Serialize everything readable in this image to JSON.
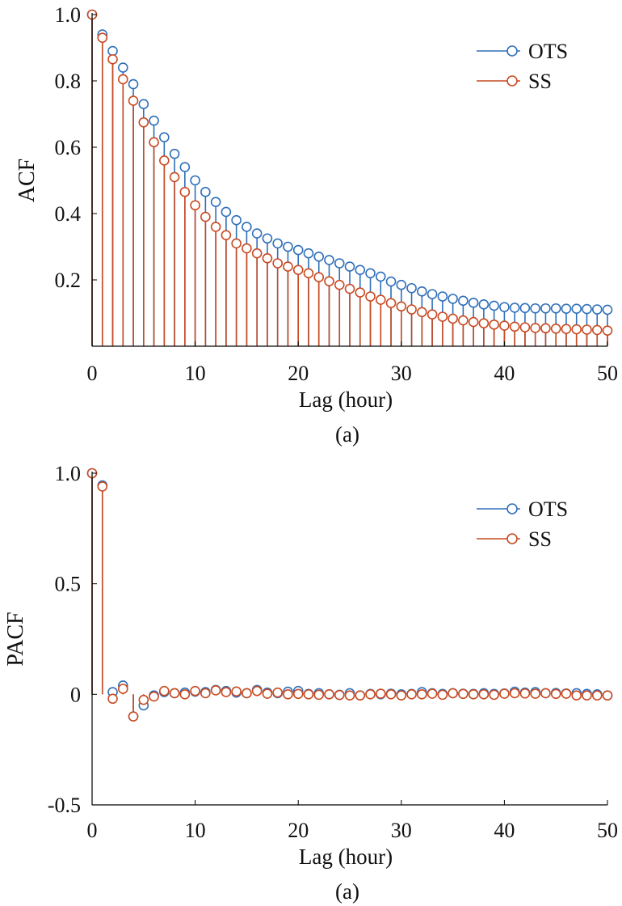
{
  "colors": {
    "ots": "#2f6fba",
    "ss": "#c94a22",
    "axis": "#000000"
  },
  "chart_data": [
    {
      "type": "stem",
      "ylabel": "ACF",
      "xlabel": "Lag (hour)",
      "caption": "(a)",
      "xlim": [
        0,
        50
      ],
      "ylim": [
        0,
        1.0
      ],
      "xticks": [
        0,
        10,
        20,
        30,
        40,
        50
      ],
      "xtick_labels": [
        "0",
        "10",
        "20",
        "30",
        "40",
        "50"
      ],
      "yticks": [
        0.2,
        0.4,
        0.6,
        0.8,
        1.0
      ],
      "ytick_labels": [
        "0.2",
        "0.4",
        "0.6",
        "0.8",
        "1.0"
      ],
      "legend_position": "top-right",
      "x": [
        0,
        1,
        2,
        3,
        4,
        5,
        6,
        7,
        8,
        9,
        10,
        11,
        12,
        13,
        14,
        15,
        16,
        17,
        18,
        19,
        20,
        21,
        22,
        23,
        24,
        25,
        26,
        27,
        28,
        29,
        30,
        31,
        32,
        33,
        34,
        35,
        36,
        37,
        38,
        39,
        40,
        41,
        42,
        43,
        44,
        45,
        46,
        47,
        48,
        49,
        50
      ],
      "series": [
        {
          "name": "OTS",
          "color_key": "ots",
          "values": [
            1.0,
            0.94,
            0.89,
            0.84,
            0.79,
            0.73,
            0.68,
            0.63,
            0.58,
            0.54,
            0.5,
            0.465,
            0.435,
            0.405,
            0.38,
            0.36,
            0.34,
            0.325,
            0.31,
            0.3,
            0.29,
            0.28,
            0.27,
            0.26,
            0.25,
            0.24,
            0.23,
            0.22,
            0.21,
            0.195,
            0.185,
            0.175,
            0.165,
            0.157,
            0.15,
            0.143,
            0.137,
            0.131,
            0.126,
            0.122,
            0.118,
            0.116,
            0.115,
            0.114,
            0.114,
            0.114,
            0.113,
            0.113,
            0.112,
            0.111,
            0.11
          ]
        },
        {
          "name": "SS",
          "color_key": "ss",
          "values": [
            1.0,
            0.93,
            0.865,
            0.805,
            0.74,
            0.675,
            0.615,
            0.56,
            0.51,
            0.465,
            0.425,
            0.39,
            0.36,
            0.335,
            0.31,
            0.295,
            0.28,
            0.265,
            0.25,
            0.24,
            0.23,
            0.22,
            0.208,
            0.196,
            0.185,
            0.173,
            0.162,
            0.15,
            0.14,
            0.13,
            0.12,
            0.111,
            0.103,
            0.096,
            0.089,
            0.083,
            0.078,
            0.073,
            0.069,
            0.065,
            0.062,
            0.059,
            0.057,
            0.055,
            0.054,
            0.053,
            0.052,
            0.051,
            0.05,
            0.049,
            0.047
          ]
        }
      ]
    },
    {
      "type": "stem",
      "ylabel": "PACF",
      "xlabel": "Lag (hour)",
      "caption": "(a)",
      "xlim": [
        0,
        50
      ],
      "ylim": [
        -0.5,
        1.0
      ],
      "xticks": [
        0,
        10,
        20,
        30,
        40,
        50
      ],
      "xtick_labels": [
        "0",
        "10",
        "20",
        "30",
        "40",
        "50"
      ],
      "yticks": [
        -0.5,
        0,
        0.5,
        1.0
      ],
      "ytick_labels": [
        "-0.5",
        "0",
        "0.5",
        "1.0"
      ],
      "legend_position": "top-right",
      "x": [
        0,
        1,
        2,
        3,
        4,
        5,
        6,
        7,
        8,
        9,
        10,
        11,
        12,
        13,
        14,
        15,
        16,
        17,
        18,
        19,
        20,
        21,
        22,
        23,
        24,
        25,
        26,
        27,
        28,
        29,
        30,
        31,
        32,
        33,
        34,
        35,
        36,
        37,
        38,
        39,
        40,
        41,
        42,
        43,
        44,
        45,
        46,
        47,
        48,
        49,
        50
      ],
      "series": [
        {
          "name": "OTS",
          "color_key": "ots",
          "values": [
            1.0,
            0.945,
            0.01,
            0.04,
            -0.1,
            -0.05,
            -0.005,
            0.01,
            0.005,
            0.008,
            0.012,
            0.01,
            0.02,
            0.015,
            0.008,
            0.005,
            0.02,
            0.008,
            0.005,
            0.012,
            0.015,
            0.002,
            0.005,
            0.0,
            -0.002,
            0.005,
            -0.005,
            0.002,
            0.0,
            0.003,
            0.0,
            0.002,
            0.01,
            0.005,
            0.002,
            0.005,
            0.003,
            0.002,
            0.005,
            0.002,
            0.004,
            0.012,
            0.008,
            0.01,
            0.005,
            0.006,
            0.004,
            0.005,
            0.002,
            0.0,
            -0.005
          ]
        },
        {
          "name": "SS",
          "color_key": "ss",
          "values": [
            1.0,
            0.94,
            -0.02,
            0.025,
            -0.1,
            -0.025,
            -0.01,
            0.015,
            0.005,
            0.0,
            0.015,
            0.005,
            0.018,
            0.01,
            0.013,
            0.005,
            0.015,
            0.003,
            0.008,
            0.0,
            0.002,
            0.0,
            -0.002,
            0.0,
            -0.003,
            -0.005,
            -0.005,
            0.0,
            0.003,
            0.0,
            -0.005,
            0.0,
            0.0,
            0.003,
            -0.002,
            0.005,
            0.002,
            0.0,
            0.0,
            -0.002,
            0.003,
            0.005,
            0.004,
            0.003,
            0.005,
            0.002,
            0.003,
            -0.005,
            -0.005,
            -0.005,
            -0.005
          ]
        }
      ]
    }
  ]
}
